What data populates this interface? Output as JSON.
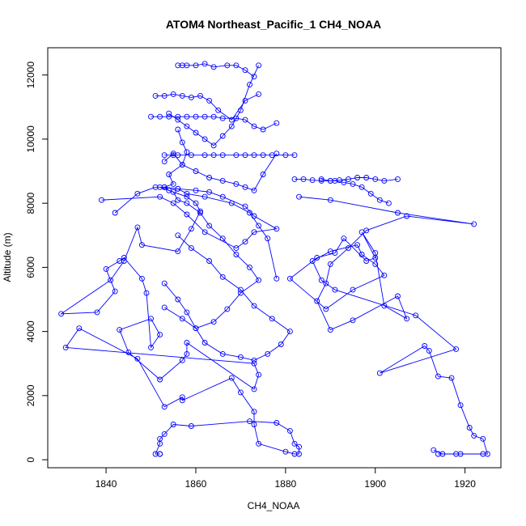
{
  "chart_data": {
    "type": "line",
    "title": "ATOM4 Northeast_Pacific_1 CH4_NOAA",
    "xlabel": "CH4_NOAA",
    "ylabel": "Altitude (m)",
    "xlim": [
      1827,
      1928
    ],
    "ylim": [
      -250,
      12850
    ],
    "xticks": [
      1840,
      1860,
      1880,
      1900,
      1920
    ],
    "yticks": [
      0,
      2000,
      4000,
      6000,
      8000,
      10000,
      12000
    ],
    "grid": false,
    "legend": "none",
    "series_color": "#0000ff",
    "marker": "open-circle",
    "series": [
      {
        "x": [
          1852,
          1852,
          1851,
          1852,
          1852,
          1853,
          1855,
          1859,
          1872,
          1878,
          1881,
          1882,
          1883,
          1883,
          1882,
          1880,
          1874,
          1873,
          1873,
          1870,
          1868,
          1857,
          1857,
          1853,
          1847,
          1834,
          1831,
          1873,
          1874,
          1873,
          1858,
          1858,
          1857,
          1852,
          1845,
          1843,
          1850,
          1852,
          1850,
          1849,
          1848,
          1844,
          1843,
          1840,
          1842,
          1838,
          1830,
          1841,
          1844,
          1847,
          1848,
          1856,
          1859,
          1861,
          1860,
          1858,
          1854,
          1853,
          1855,
          1854,
          1857,
          1858,
          1857,
          1856
        ],
        "y": [
          180,
          180,
          180,
          500,
          650,
          800,
          1100,
          1050,
          1200,
          1150,
          900,
          500,
          400,
          180,
          180,
          250,
          500,
          1100,
          1500,
          2100,
          2550,
          1850,
          1950,
          1650,
          3150,
          4100,
          3500,
          3000,
          2650,
          2200,
          3650,
          3300,
          3100,
          2500,
          3350,
          4050,
          4400,
          3900,
          3500,
          5200,
          5650,
          6300,
          6200,
          5950,
          5250,
          4600,
          4550,
          5600,
          6200,
          7250,
          6700,
          6500,
          7200,
          7750,
          8000,
          8200,
          8400,
          8500,
          8600,
          8900,
          9200,
          9600,
          9900,
          10300
        ]
      },
      {
        "x": [
          1913,
          1915,
          1914,
          1919,
          1918,
          1924,
          1925,
          1924,
          1922,
          1921,
          1919,
          1917,
          1914,
          1912,
          1911,
          1901,
          1918,
          1909,
          1891,
          1888,
          1886,
          1890,
          1896,
          1897,
          1900,
          1902,
          1895,
          1889,
          1881,
          1887,
          1891,
          1893,
          1898,
          1900,
          1897,
          1900,
          1902,
          1907,
          1905,
          1895,
          1890,
          1887,
          1889,
          1890,
          1894,
          1898,
          1907,
          1922,
          1905,
          1890,
          1883
        ],
        "y": [
          300,
          180,
          180,
          180,
          180,
          180,
          180,
          650,
          750,
          1000,
          1700,
          2550,
          2600,
          3400,
          3550,
          2700,
          3450,
          4500,
          5300,
          5600,
          6200,
          6500,
          6700,
          6400,
          6100,
          5750,
          5300,
          4700,
          5650,
          6300,
          6450,
          6900,
          6200,
          6300,
          7100,
          6450,
          4800,
          4400,
          5100,
          4350,
          4050,
          4950,
          5500,
          6100,
          6600,
          7150,
          7600,
          7350,
          7700,
          8100,
          8200
        ]
      },
      {
        "x": [
          1842,
          1847,
          1851,
          1853,
          1856,
          1860,
          1863,
          1866,
          1871,
          1873,
          1878,
          1873,
          1871,
          1869,
          1862,
          1858,
          1855,
          1852,
          1839
        ],
        "y": [
          7700,
          8300,
          8500,
          8500,
          8450,
          8400,
          8350,
          8200,
          7900,
          7600,
          7200,
          7100,
          6800,
          6600,
          7100,
          7650,
          8000,
          8200,
          8100
        ]
      },
      {
        "x": [
          1853,
          1856,
          1858,
          1860,
          1864,
          1867,
          1870,
          1874,
          1872,
          1869,
          1866,
          1863,
          1861,
          1858,
          1856,
          1855,
          1852,
          1856,
          1858,
          1862,
          1868,
          1872,
          1874,
          1876,
          1878
        ],
        "y": [
          5500,
          5000,
          4600,
          4100,
          4300,
          4700,
          5200,
          5600,
          6000,
          6400,
          6900,
          7300,
          7700,
          8000,
          8100,
          8350,
          8500,
          8450,
          8300,
          8200,
          8000,
          7700,
          7300,
          6900,
          5650
        ]
      },
      {
        "x": [
          1853,
          1857,
          1860,
          1862,
          1866,
          1870,
          1873,
          1876,
          1879,
          1881,
          1877,
          1873,
          1870,
          1866,
          1863,
          1859,
          1856
        ],
        "y": [
          4750,
          4400,
          4100,
          3650,
          3300,
          3200,
          3100,
          3300,
          3600,
          4000,
          4400,
          4800,
          5300,
          5700,
          6200,
          6600,
          7000
        ]
      },
      {
        "x": [
          1853,
          1855,
          1856,
          1859,
          1862,
          1864,
          1866,
          1869,
          1871,
          1873,
          1875,
          1877,
          1880,
          1882
        ],
        "y": [
          9500,
          9500,
          9500,
          9500,
          9500,
          9500,
          9500,
          9500,
          9500,
          9500,
          9500,
          9500,
          9500,
          9500
        ]
      },
      {
        "x": [
          1853,
          1855,
          1857,
          1860,
          1863,
          1866,
          1869,
          1871,
          1873,
          1875,
          1878
        ],
        "y": [
          9300,
          9550,
          9200,
          9000,
          8800,
          8700,
          8600,
          8500,
          8400,
          8900,
          9550
        ]
      },
      {
        "x": [
          1850,
          1852,
          1854,
          1856,
          1858,
          1860,
          1862,
          1864,
          1866,
          1869,
          1871,
          1873,
          1875,
          1878
        ],
        "y": [
          10700,
          10700,
          10700,
          10700,
          10700,
          10700,
          10700,
          10700,
          10650,
          10650,
          10600,
          10400,
          10300,
          10500
        ]
      },
      {
        "x": [
          1851,
          1853,
          1855,
          1857,
          1859,
          1861,
          1863,
          1865,
          1868,
          1871,
          1874
        ],
        "y": [
          11350,
          11350,
          11400,
          11350,
          11300,
          11350,
          11200,
          10900,
          10600,
          11200,
          11400
        ]
      },
      {
        "x": [
          1854,
          1856,
          1858,
          1860,
          1862,
          1864,
          1866,
          1868,
          1870,
          1872,
          1874
        ],
        "y": [
          10800,
          10600,
          10400,
          10200,
          10000,
          9800,
          10100,
          10400,
          10900,
          11700,
          12300
        ]
      },
      {
        "x": [
          1856,
          1857,
          1858,
          1860,
          1862,
          1864,
          1867,
          1869,
          1871,
          1873
        ],
        "y": [
          12300,
          12300,
          12300,
          12300,
          12350,
          12250,
          12300,
          12300,
          12150,
          11950
        ]
      },
      {
        "x": [
          1882,
          1884,
          1886,
          1888,
          1890,
          1892,
          1894,
          1896,
          1898,
          1900,
          1902,
          1905
        ],
        "y": [
          8750,
          8750,
          8720,
          8700,
          8700,
          8720,
          8750,
          8800,
          8800,
          8750,
          8700,
          8750
        ]
      },
      {
        "x": [
          1888,
          1890,
          1891,
          1893,
          1895,
          1897,
          1899,
          1901,
          1903
        ],
        "y": [
          8750,
          8700,
          8700,
          8650,
          8600,
          8500,
          8300,
          8100,
          8000
        ]
      }
    ]
  }
}
